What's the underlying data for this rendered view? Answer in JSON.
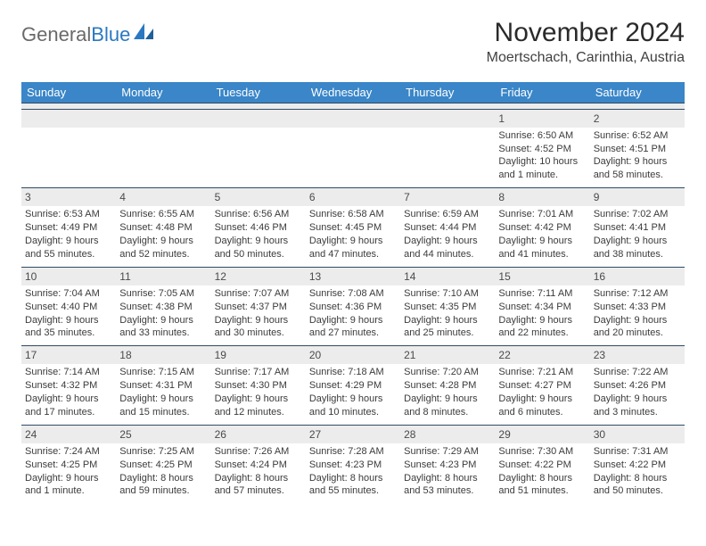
{
  "logo": {
    "word1": "General",
    "word2": "Blue"
  },
  "title": "November 2024",
  "location": "Moertschach, Carinthia, Austria",
  "colors": {
    "header_bg": "#3a86c8",
    "header_text": "#ffffff",
    "stripe_bg": "#ececec",
    "border": "#2f4b66",
    "body_text": "#3b3b3b",
    "logo_gray": "#6a6a6a",
    "logo_blue": "#2b78c2"
  },
  "day_headers": [
    "Sunday",
    "Monday",
    "Tuesday",
    "Wednesday",
    "Thursday",
    "Friday",
    "Saturday"
  ],
  "weeks": [
    [
      null,
      null,
      null,
      null,
      null,
      {
        "num": "1",
        "sunrise": "6:50 AM",
        "sunset": "4:52 PM",
        "daylight": "10 hours and 1 minute."
      },
      {
        "num": "2",
        "sunrise": "6:52 AM",
        "sunset": "4:51 PM",
        "daylight": "9 hours and 58 minutes."
      }
    ],
    [
      {
        "num": "3",
        "sunrise": "6:53 AM",
        "sunset": "4:49 PM",
        "daylight": "9 hours and 55 minutes."
      },
      {
        "num": "4",
        "sunrise": "6:55 AM",
        "sunset": "4:48 PM",
        "daylight": "9 hours and 52 minutes."
      },
      {
        "num": "5",
        "sunrise": "6:56 AM",
        "sunset": "4:46 PM",
        "daylight": "9 hours and 50 minutes."
      },
      {
        "num": "6",
        "sunrise": "6:58 AM",
        "sunset": "4:45 PM",
        "daylight": "9 hours and 47 minutes."
      },
      {
        "num": "7",
        "sunrise": "6:59 AM",
        "sunset": "4:44 PM",
        "daylight": "9 hours and 44 minutes."
      },
      {
        "num": "8",
        "sunrise": "7:01 AM",
        "sunset": "4:42 PM",
        "daylight": "9 hours and 41 minutes."
      },
      {
        "num": "9",
        "sunrise": "7:02 AM",
        "sunset": "4:41 PM",
        "daylight": "9 hours and 38 minutes."
      }
    ],
    [
      {
        "num": "10",
        "sunrise": "7:04 AM",
        "sunset": "4:40 PM",
        "daylight": "9 hours and 35 minutes."
      },
      {
        "num": "11",
        "sunrise": "7:05 AM",
        "sunset": "4:38 PM",
        "daylight": "9 hours and 33 minutes."
      },
      {
        "num": "12",
        "sunrise": "7:07 AM",
        "sunset": "4:37 PM",
        "daylight": "9 hours and 30 minutes."
      },
      {
        "num": "13",
        "sunrise": "7:08 AM",
        "sunset": "4:36 PM",
        "daylight": "9 hours and 27 minutes."
      },
      {
        "num": "14",
        "sunrise": "7:10 AM",
        "sunset": "4:35 PM",
        "daylight": "9 hours and 25 minutes."
      },
      {
        "num": "15",
        "sunrise": "7:11 AM",
        "sunset": "4:34 PM",
        "daylight": "9 hours and 22 minutes."
      },
      {
        "num": "16",
        "sunrise": "7:12 AM",
        "sunset": "4:33 PM",
        "daylight": "9 hours and 20 minutes."
      }
    ],
    [
      {
        "num": "17",
        "sunrise": "7:14 AM",
        "sunset": "4:32 PM",
        "daylight": "9 hours and 17 minutes."
      },
      {
        "num": "18",
        "sunrise": "7:15 AM",
        "sunset": "4:31 PM",
        "daylight": "9 hours and 15 minutes."
      },
      {
        "num": "19",
        "sunrise": "7:17 AM",
        "sunset": "4:30 PM",
        "daylight": "9 hours and 12 minutes."
      },
      {
        "num": "20",
        "sunrise": "7:18 AM",
        "sunset": "4:29 PM",
        "daylight": "9 hours and 10 minutes."
      },
      {
        "num": "21",
        "sunrise": "7:20 AM",
        "sunset": "4:28 PM",
        "daylight": "9 hours and 8 minutes."
      },
      {
        "num": "22",
        "sunrise": "7:21 AM",
        "sunset": "4:27 PM",
        "daylight": "9 hours and 6 minutes."
      },
      {
        "num": "23",
        "sunrise": "7:22 AM",
        "sunset": "4:26 PM",
        "daylight": "9 hours and 3 minutes."
      }
    ],
    [
      {
        "num": "24",
        "sunrise": "7:24 AM",
        "sunset": "4:25 PM",
        "daylight": "9 hours and 1 minute."
      },
      {
        "num": "25",
        "sunrise": "7:25 AM",
        "sunset": "4:25 PM",
        "daylight": "8 hours and 59 minutes."
      },
      {
        "num": "26",
        "sunrise": "7:26 AM",
        "sunset": "4:24 PM",
        "daylight": "8 hours and 57 minutes."
      },
      {
        "num": "27",
        "sunrise": "7:28 AM",
        "sunset": "4:23 PM",
        "daylight": "8 hours and 55 minutes."
      },
      {
        "num": "28",
        "sunrise": "7:29 AM",
        "sunset": "4:23 PM",
        "daylight": "8 hours and 53 minutes."
      },
      {
        "num": "29",
        "sunrise": "7:30 AM",
        "sunset": "4:22 PM",
        "daylight": "8 hours and 51 minutes."
      },
      {
        "num": "30",
        "sunrise": "7:31 AM",
        "sunset": "4:22 PM",
        "daylight": "8 hours and 50 minutes."
      }
    ]
  ],
  "labels": {
    "sunrise": "Sunrise: ",
    "sunset": "Sunset: ",
    "daylight": "Daylight: "
  }
}
